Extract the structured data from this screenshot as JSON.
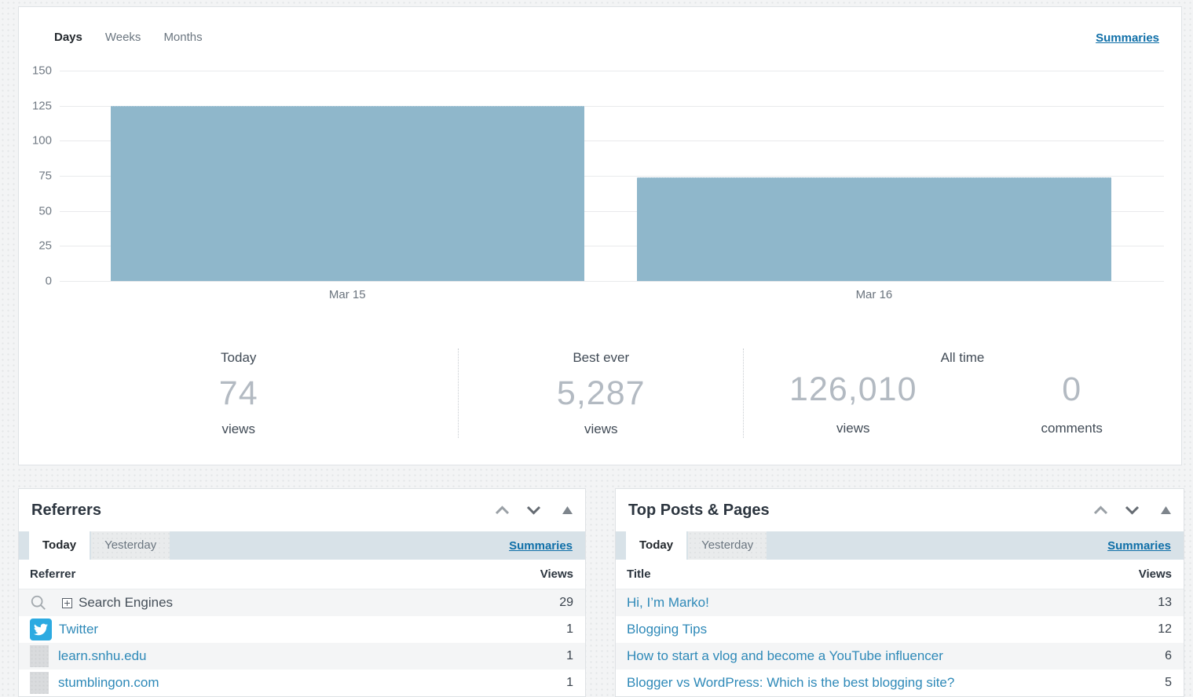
{
  "colors": {
    "bar": "#8fb7cb",
    "link": "#2e89b8",
    "summaries_link": "#0f6fa8",
    "tabbar_bg": "#d8e2e8",
    "twitter_blue": "#2caae1"
  },
  "chart_panel": {
    "tabs": [
      "Days",
      "Weeks",
      "Months"
    ],
    "active_tab": "Days",
    "summaries_label": "Summaries",
    "stats": {
      "today": {
        "label": "Today",
        "value": "74",
        "unit": "views"
      },
      "best_ever": {
        "label": "Best ever",
        "value": "5,287",
        "unit": "views"
      },
      "all_time": {
        "label": "All time",
        "views_value": "126,010",
        "views_unit": "views",
        "comments_value": "0",
        "comments_unit": "comments"
      }
    }
  },
  "chart_data": {
    "type": "bar",
    "title": "",
    "xlabel": "",
    "ylabel": "",
    "categories": [
      "Mar 15",
      "Mar 16"
    ],
    "values": [
      125,
      74
    ],
    "ylim": [
      0,
      150
    ],
    "yticks": [
      150,
      125,
      100,
      75,
      50,
      25,
      0
    ],
    "grid": "horizontal",
    "legend": "none",
    "bar_color": "#8fb7cb"
  },
  "referrers": {
    "title": "Referrers",
    "tabs": [
      "Today",
      "Yesterday"
    ],
    "active_tab": "Today",
    "summaries_label": "Summaries",
    "columns": {
      "name": "Referrer",
      "views": "Views"
    },
    "rows": [
      {
        "icon": "search-engines-icon",
        "label": "Search Engines",
        "views": "29",
        "expandable": true,
        "is_link": false
      },
      {
        "icon": "twitter-icon",
        "label": "Twitter",
        "views": "1",
        "is_link": true
      },
      {
        "icon": "generic-site-icon",
        "label": "learn.snhu.edu",
        "views": "1",
        "is_link": true
      },
      {
        "icon": "generic-site-icon",
        "label": "stumblingon.com",
        "views": "1",
        "is_link": true
      }
    ]
  },
  "top_posts": {
    "title": "Top Posts & Pages",
    "tabs": [
      "Today",
      "Yesterday"
    ],
    "active_tab": "Today",
    "summaries_label": "Summaries",
    "columns": {
      "title": "Title",
      "views": "Views"
    },
    "rows": [
      {
        "label": "Hi, I’m Marko!",
        "views": "13"
      },
      {
        "label": "Blogging Tips",
        "views": "12"
      },
      {
        "label": "How to start a vlog and become a YouTube influencer",
        "views": "6"
      },
      {
        "label": "Blogger vs WordPress: Which is the best blogging site?",
        "views": "5"
      }
    ]
  }
}
